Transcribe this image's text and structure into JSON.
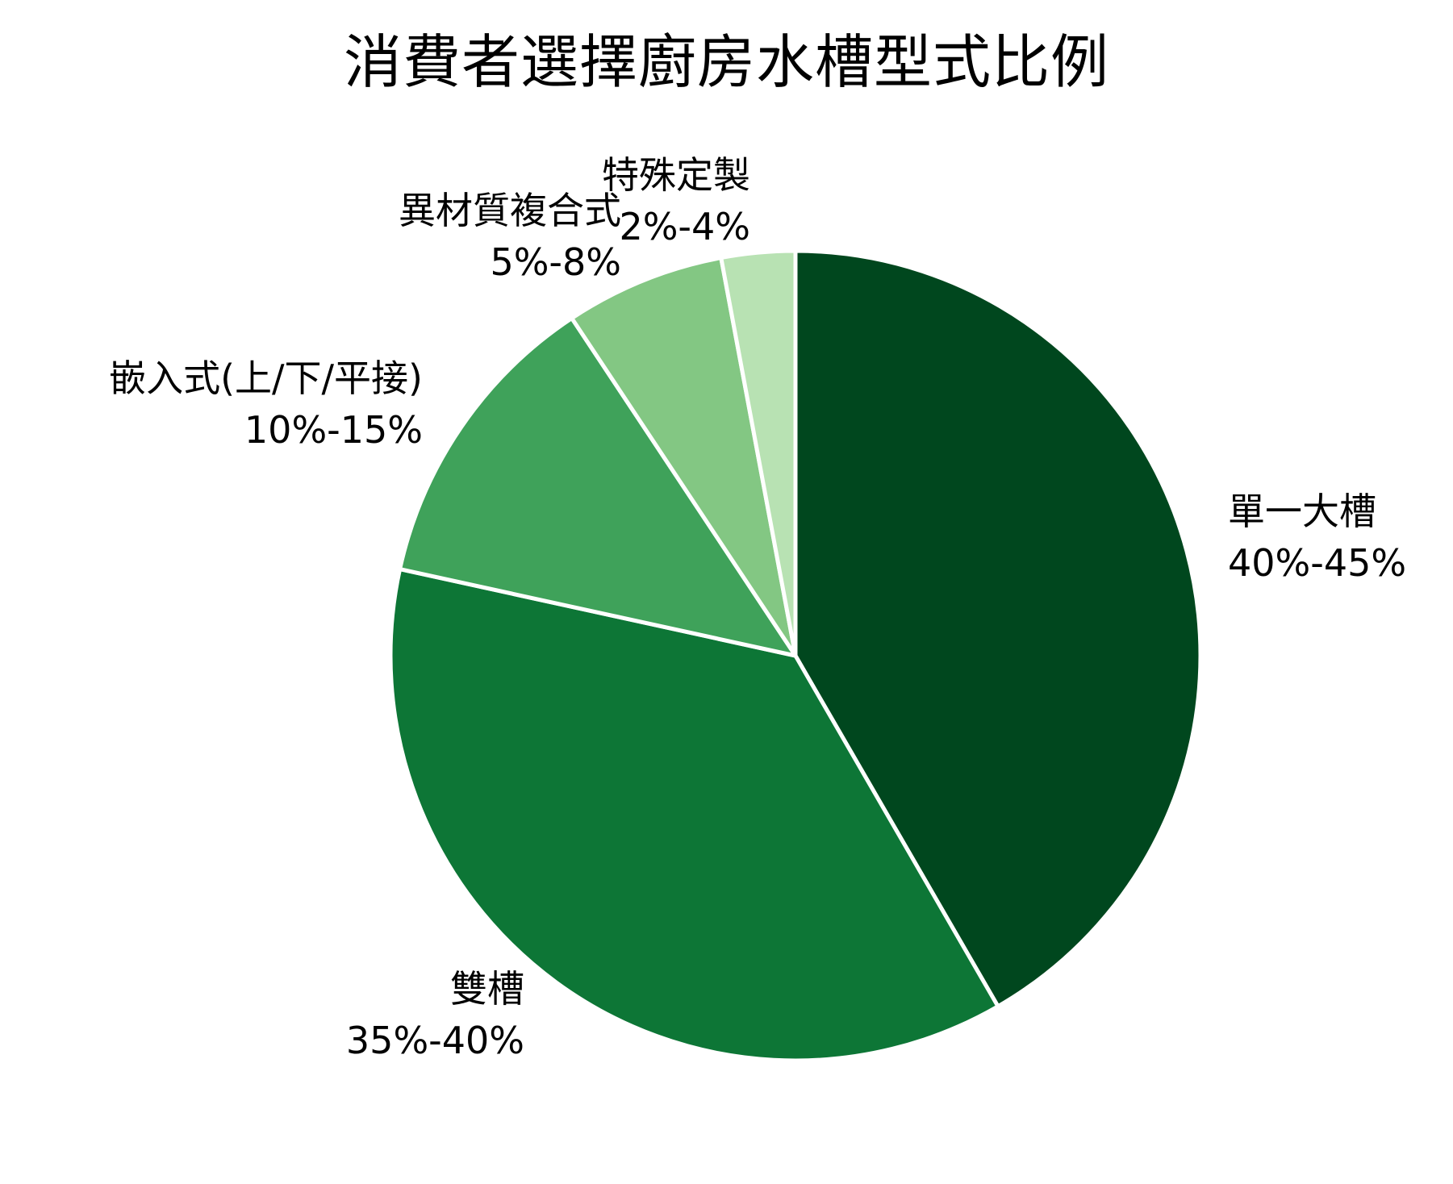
{
  "chart_data": {
    "type": "pie",
    "title": "消費者選擇廚房水槽型式比例",
    "slices": [
      {
        "label": "單一大槽",
        "range": "40%-45%",
        "value": 42.5,
        "color": "#00471e"
      },
      {
        "label": "雙槽",
        "range": "35%-40%",
        "value": 37.5,
        "color": "#0d7636"
      },
      {
        "label": "嵌入式(上/下/平接)",
        "range": "10%-15%",
        "value": 12.5,
        "color": "#3fa25a"
      },
      {
        "label": "異材質複合式",
        "range": "5%-8%",
        "value": 6.5,
        "color": "#83c783"
      },
      {
        "label": "特殊定製",
        "range": "2%-4%",
        "value": 3,
        "color": "#b8e2b3"
      }
    ],
    "start_angle": "12 o'clock",
    "direction": "clockwise",
    "legend": "none"
  }
}
